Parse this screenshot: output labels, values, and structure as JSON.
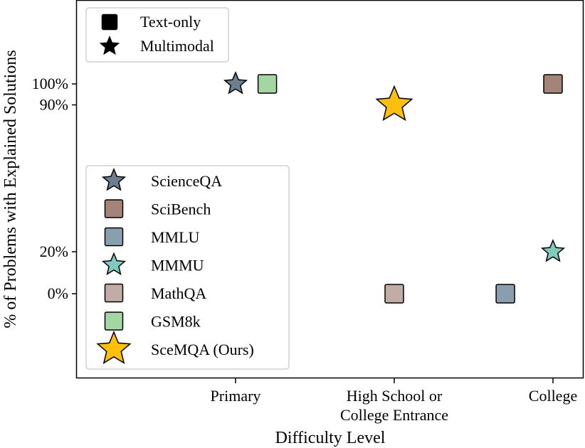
{
  "chart_data": {
    "type": "scatter",
    "title": "",
    "xlabel": "Difficulty Level",
    "ylabel": "% of Problems with Explained Solutions",
    "x_categories": [
      "Primary",
      "High School or\nCollege Entrance",
      "College"
    ],
    "y_ticks": [
      {
        "value": 100,
        "label": "100%"
      },
      {
        "value": 90,
        "label": "90%"
      },
      {
        "value": 20,
        "label": "20%"
      },
      {
        "value": 0,
        "label": "0%"
      }
    ],
    "ylim": [
      -40,
      140
    ],
    "grid": false,
    "shape_legend": {
      "placement": "top-left",
      "items": [
        {
          "marker": "square",
          "label": "Text-only"
        },
        {
          "marker": "star",
          "label": "Multimodal"
        }
      ]
    },
    "series_legend_placement": "center-left",
    "series": [
      {
        "name": "ScienceQA",
        "marker": "star",
        "color": "#6b7f8e",
        "size": "normal",
        "x": 0,
        "y": 100
      },
      {
        "name": "SciBench",
        "marker": "square",
        "color": "#a48478",
        "size": "normal",
        "x": 2,
        "y": 100
      },
      {
        "name": "MMLU",
        "marker": "square",
        "color": "#8a9fad",
        "size": "normal",
        "x": 1.7,
        "y": 0
      },
      {
        "name": "MMMU",
        "marker": "star",
        "color": "#7fcabd",
        "size": "normal",
        "x": 2,
        "y": 20
      },
      {
        "name": "MathQA",
        "marker": "square",
        "color": "#c2aca6",
        "size": "normal",
        "x": 1,
        "y": 0
      },
      {
        "name": "GSM8k",
        "marker": "square",
        "color": "#a3d6a3",
        "size": "normal",
        "x": 0.2,
        "y": 100
      },
      {
        "name": "SceMQA (Ours)",
        "marker": "star",
        "color": "#fbbf0c",
        "size": "large",
        "x": 1,
        "y": 90
      }
    ]
  }
}
